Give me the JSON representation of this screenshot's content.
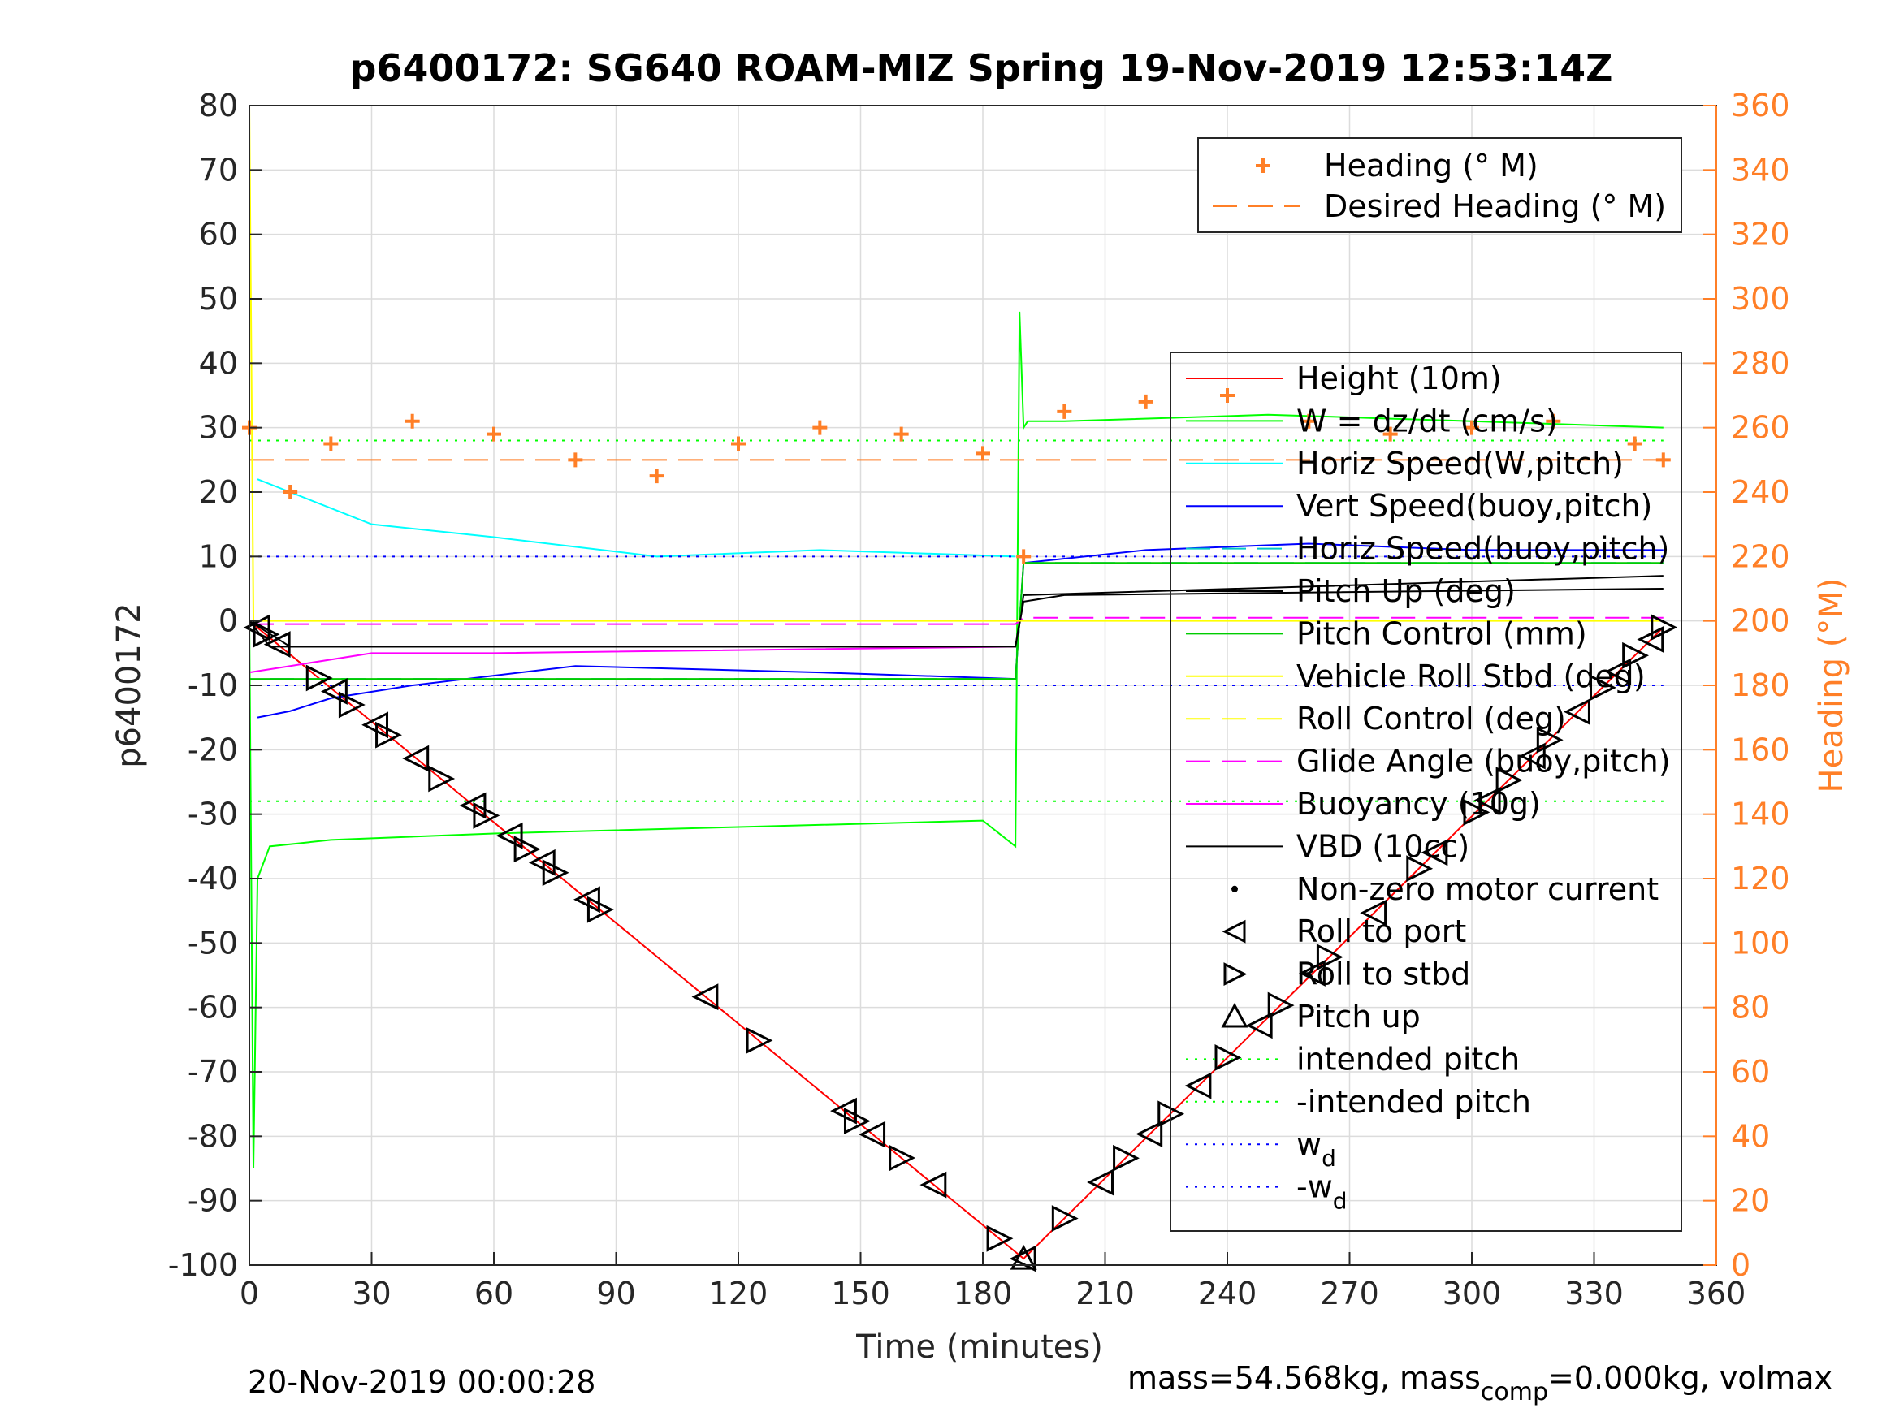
{
  "chart_data": {
    "type": "line",
    "title": "p6400172: SG640 ROAM-MIZ Spring 19-Nov-2019 12:53:14Z",
    "xlabel": "Time (minutes)",
    "ylabel": "p6400172",
    "y2label": "Heading (°M)",
    "xlim": [
      0,
      360
    ],
    "ylim": [
      -100,
      80
    ],
    "y2lim": [
      0,
      360
    ],
    "xticks": [
      "0",
      "30",
      "60",
      "90",
      "120",
      "150",
      "180",
      "210",
      "240",
      "270",
      "300",
      "330",
      "360"
    ],
    "yticks": [
      "80",
      "70",
      "60",
      "50",
      "40",
      "30",
      "20",
      "10",
      "0",
      "-10",
      "-20",
      "-30",
      "-40",
      "-50",
      "-60",
      "-70",
      "-80",
      "-90",
      "-100"
    ],
    "y2ticks": [
      "360",
      "340",
      "320",
      "300",
      "280",
      "260",
      "240",
      "220",
      "200",
      "180",
      "160",
      "140",
      "120",
      "100",
      "80",
      "60",
      "40",
      "20",
      "0"
    ],
    "grid": true,
    "colors": {
      "heading": "#ff7f27",
      "height": "#ff0000",
      "w": "#00ff00",
      "horiz_w": "#00ffff",
      "vert_buoy": "#0000ff",
      "horiz_buoy": "#00c8c8",
      "pitch_up": "#000000",
      "pitch_control": "#00cc00",
      "roll": "#ffff00",
      "glide": "#ff00ff",
      "buoyancy": "#ff00ff",
      "vbd": "#000000"
    },
    "legend_heading": [
      "Heading (° M)",
      "Desired Heading (° M)"
    ],
    "legend_main": [
      "Height (10m)",
      "W = dz/dt (cm/s)",
      "Horiz Speed(W,pitch)",
      "Vert Speed(buoy,pitch)",
      "Horiz Speed(buoy,pitch)",
      "Pitch Up (deg)",
      "Pitch Control (mm)",
      "Vehicle Roll Stbd (deg)",
      "Roll Control (deg)",
      "Glide Angle (buoy,pitch)",
      "Buoyancy (10g)",
      "VBD (10cc)",
      "Non-zero motor current",
      "Roll to port",
      "Roll to stbd",
      "Pitch up",
      "intended pitch",
      "-intended pitch",
      "w_d",
      "-w_d"
    ],
    "series": [
      {
        "name": "Height (10m)",
        "x": [
          0,
          190,
          347
        ],
        "y": [
          0,
          -99,
          -1
        ]
      },
      {
        "name": "W = dz/dt (cm/s)",
        "x": [
          0,
          1,
          2,
          5,
          20,
          60,
          120,
          180,
          188,
          189,
          190,
          191,
          200,
          250,
          300,
          347
        ],
        "y": [
          0,
          -85,
          -40,
          -35,
          -34,
          -33,
          -32,
          -31,
          -35,
          48,
          30,
          31,
          31,
          32,
          31,
          30
        ]
      },
      {
        "name": "Horiz Speed(W,pitch)",
        "x": [
          2,
          10,
          30,
          60,
          100,
          140,
          188
        ],
        "y": [
          22,
          20,
          15,
          13,
          10,
          11,
          10
        ]
      },
      {
        "name": "Vert Speed(buoy,pitch)",
        "x": [
          2,
          10,
          20,
          40,
          80,
          140,
          188,
          190,
          220,
          260,
          300,
          347
        ],
        "y": [
          -15,
          -14,
          -12,
          -10,
          -7,
          -8,
          -9,
          9,
          11,
          12,
          11,
          11
        ]
      },
      {
        "name": "Horiz Speed(buoy,pitch)",
        "x": [
          5,
          188,
          190,
          347
        ],
        "y": [
          -9,
          -9,
          9,
          9
        ]
      },
      {
        "name": "Pitch Up (deg)",
        "x": [
          0,
          10,
          188,
          190,
          347
        ],
        "y": [
          0,
          -4,
          -4,
          4,
          7
        ]
      },
      {
        "name": "Pitch Control (mm)",
        "x": [
          0,
          188,
          190,
          347
        ],
        "y": [
          -9,
          -9,
          9,
          9
        ]
      },
      {
        "name": "Glide Angle (buoy,pitch)",
        "x": [
          0,
          188,
          190,
          347
        ],
        "y": [
          -0.5,
          -0.5,
          0.5,
          0.5
        ]
      },
      {
        "name": "Buoyancy (10g)",
        "x": [
          0,
          10,
          30,
          60,
          188
        ],
        "y": [
          -8,
          -7,
          -5,
          -5,
          -4
        ]
      },
      {
        "name": "VBD (10cc)",
        "x": [
          0,
          5,
          188,
          190,
          200,
          347
        ],
        "y": [
          0,
          -4,
          -4,
          3,
          4,
          5
        ]
      },
      {
        "name": "Heading (° M)",
        "x": [
          0,
          10,
          20,
          40,
          60,
          80,
          100,
          120,
          140,
          160,
          180,
          190,
          200,
          220,
          240,
          260,
          280,
          300,
          320,
          340,
          347
        ],
        "y": [
          260,
          240,
          255,
          262,
          258,
          250,
          245,
          255,
          260,
          258,
          252,
          220,
          265,
          268,
          270,
          262,
          258,
          260,
          262,
          255,
          250
        ]
      },
      {
        "name": "Desired Heading (° M)",
        "x": [
          0,
          347
        ],
        "y": [
          250,
          250
        ]
      },
      {
        "name": "intended pitch",
        "x": [
          0,
          347
        ],
        "y": [
          28,
          28
        ]
      },
      {
        "name": "-intended pitch",
        "x": [
          0,
          347
        ],
        "y": [
          -28,
          -28
        ]
      },
      {
        "name": "w_d",
        "x": [
          0,
          347
        ],
        "y": [
          10,
          10
        ]
      },
      {
        "name": "-w_d",
        "x": [
          0,
          347
        ],
        "y": [
          -10,
          -10
        ]
      }
    ],
    "roll_markers_x": [
      2,
      4,
      7,
      17,
      21,
      25,
      31,
      34,
      41,
      47,
      55,
      58,
      64,
      68,
      72,
      75,
      83,
      86,
      112,
      125,
      146,
      149,
      153,
      160,
      168,
      184,
      190,
      200,
      209,
      215,
      221,
      226,
      233,
      240,
      248,
      253,
      261,
      265,
      276,
      287,
      291,
      301,
      304,
      309,
      315,
      319,
      326,
      332,
      336,
      340,
      344,
      347
    ],
    "footer_left": "20-Nov-2019 00:00:28",
    "footer_right": "mass=54.568kg, mass",
    "footer_right_sub": "comp",
    "footer_right_end": "=0.000kg, volmax"
  }
}
